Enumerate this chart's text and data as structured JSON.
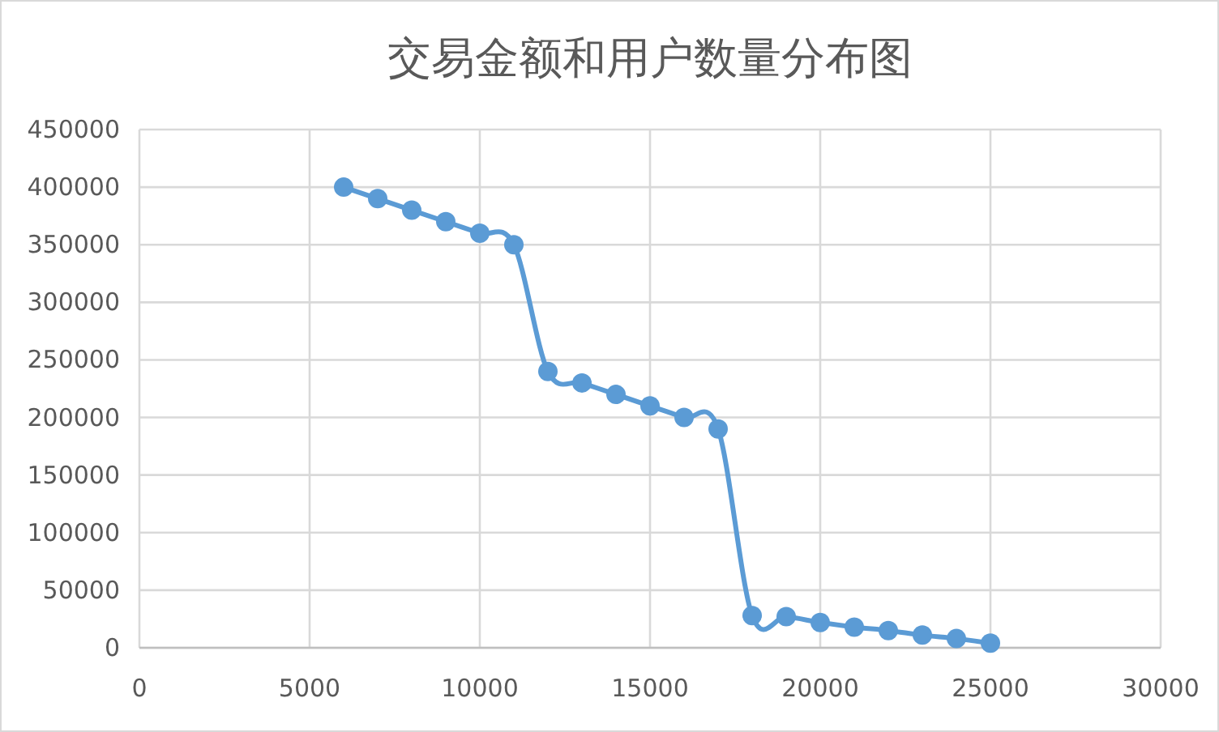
{
  "chart_data": {
    "type": "line",
    "title": "交易金额和用户数量分布图",
    "x": [
      6000,
      7000,
      8000,
      9000,
      10000,
      11000,
      12000,
      13000,
      14000,
      15000,
      16000,
      17000,
      18000,
      19000,
      20000,
      21000,
      22000,
      23000,
      24000,
      25000
    ],
    "values": [
      400000,
      390000,
      380000,
      370000,
      360000,
      350000,
      240000,
      230000,
      220000,
      210000,
      200000,
      190000,
      28000,
      27000,
      22000,
      18000,
      15000,
      11000,
      8000,
      4000
    ],
    "color": "#5b9bd5",
    "marker": "circle",
    "grid": true,
    "xlim": [
      0,
      30000
    ],
    "xticks": [
      0,
      5000,
      10000,
      15000,
      20000,
      25000,
      30000
    ],
    "ylim": [
      0,
      450000
    ],
    "yticks": [
      0,
      50000,
      100000,
      150000,
      200000,
      250000,
      300000,
      350000,
      400000,
      450000
    ]
  }
}
